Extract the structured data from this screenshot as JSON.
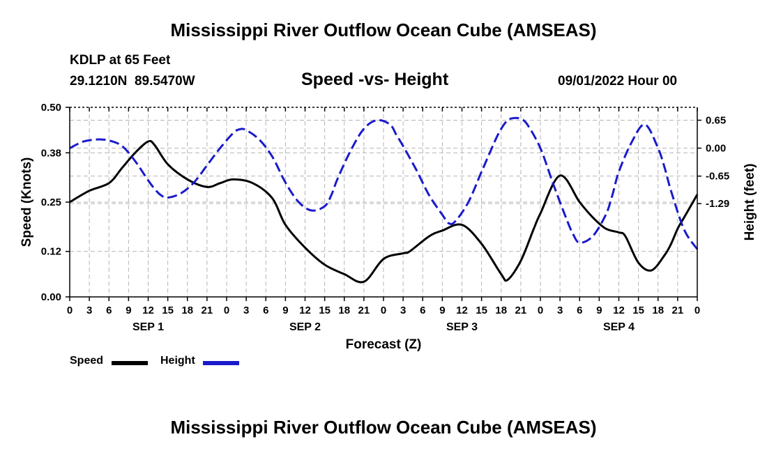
{
  "page": {
    "title_top": "Mississippi River Outflow Ocean Cube (AMSEAS)",
    "title_bottom": "Mississippi River Outflow Ocean Cube (AMSEAS)",
    "station": "KDLP at 65 Feet",
    "coords": "29.1210N  89.5470W",
    "date": "09/01/2022 Hour 00"
  },
  "legend": [
    {
      "label": "Speed",
      "color": "#000000"
    },
    {
      "label": "Height",
      "color": "#1a1acc"
    }
  ],
  "chart_data": {
    "type": "line",
    "title": "Speed -vs- Height",
    "xlabel": "Forecast (Z)",
    "ylabel": "Speed (Knots)",
    "y2label": "Height (feet)",
    "xlim": [
      0,
      96
    ],
    "ylim": [
      0,
      0.5
    ],
    "y2lim": [
      -3.46,
      0.95
    ],
    "x_ticks": [
      0,
      3,
      6,
      9,
      12,
      15,
      18,
      21,
      24,
      27,
      30,
      33,
      36,
      39,
      42,
      45,
      48,
      51,
      54,
      57,
      60,
      63,
      66,
      69,
      72,
      75,
      78,
      81,
      84,
      87,
      90,
      93,
      96
    ],
    "x_tick_labels": [
      "0",
      "3",
      "6",
      "9",
      "12",
      "15",
      "18",
      "21",
      "0",
      "3",
      "6",
      "9",
      "12",
      "15",
      "18",
      "21",
      "0",
      "3",
      "6",
      "9",
      "12",
      "15",
      "18",
      "21",
      "0",
      "3",
      "6",
      "9",
      "12",
      "15",
      "18",
      "21",
      "0"
    ],
    "y_ticks": [
      0.0,
      0.12,
      0.25,
      0.38,
      0.5
    ],
    "y_tick_labels": [
      "0.00",
      "0.12",
      "0.25",
      "0.38",
      "0.50"
    ],
    "y2_ticks": [
      0.65,
      0.0,
      -0.65,
      -1.29
    ],
    "y2_tick_labels": [
      "0.65",
      "0.00",
      "-0.65",
      "-1.29"
    ],
    "day_labels": [
      {
        "x": 12,
        "label": "SEP 1"
      },
      {
        "x": 36,
        "label": "SEP 2"
      },
      {
        "x": 60,
        "label": "SEP 3"
      },
      {
        "x": 84,
        "label": "SEP 4"
      }
    ],
    "grid": true,
    "series": [
      {
        "name": "Speed",
        "axis": "left",
        "color": "#000000",
        "dash": "",
        "x": [
          0,
          3,
          6,
          8,
          10,
          12,
          13,
          15,
          18,
          21,
          23,
          25,
          28,
          31,
          33,
          36,
          39,
          42,
          45,
          48,
          51,
          52,
          55,
          57,
          60,
          63,
          66,
          67,
          69,
          71,
          72,
          75,
          78,
          80,
          82,
          84,
          85,
          87,
          89,
          91,
          92,
          93,
          94,
          96
        ],
        "values": [
          0.25,
          0.28,
          0.3,
          0.34,
          0.38,
          0.41,
          0.4,
          0.35,
          0.31,
          0.29,
          0.3,
          0.31,
          0.3,
          0.26,
          0.19,
          0.13,
          0.085,
          0.06,
          0.04,
          0.1,
          0.115,
          0.12,
          0.16,
          0.175,
          0.19,
          0.14,
          0.06,
          0.045,
          0.095,
          0.18,
          0.22,
          0.32,
          0.25,
          0.21,
          0.18,
          0.17,
          0.16,
          0.09,
          0.07,
          0.11,
          0.14,
          0.18,
          0.21,
          0.27
        ]
      },
      {
        "name": "Height",
        "axis": "right",
        "color": "#1a1acc",
        "dash": "14 6",
        "x": [
          0,
          2,
          4,
          5,
          6,
          8,
          10,
          12,
          13,
          14,
          15,
          17,
          19,
          21,
          23,
          25,
          26,
          27,
          29,
          31,
          33,
          35,
          37,
          39,
          40,
          41,
          43,
          45,
          47,
          49,
          50,
          51,
          53,
          55,
          57,
          58,
          59,
          61,
          63,
          65,
          66,
          67,
          68,
          69,
          70,
          72,
          74,
          76,
          77,
          78,
          80,
          82,
          83,
          84,
          86,
          88,
          90,
          91,
          92,
          94,
          96
        ],
        "values": [
          0.0,
          0.15,
          0.2,
          0.2,
          0.18,
          0.05,
          -0.3,
          -0.75,
          -0.95,
          -1.1,
          -1.15,
          -1.05,
          -0.8,
          -0.4,
          0.0,
          0.35,
          0.44,
          0.42,
          0.2,
          -0.2,
          -0.8,
          -1.25,
          -1.45,
          -1.35,
          -1.1,
          -0.7,
          -0.05,
          0.45,
          0.65,
          0.55,
          0.3,
          0.05,
          -0.5,
          -1.1,
          -1.55,
          -1.75,
          -1.7,
          -1.25,
          -0.55,
          0.15,
          0.45,
          0.65,
          0.7,
          0.68,
          0.55,
          0.0,
          -0.85,
          -1.65,
          -2.0,
          -2.2,
          -2.05,
          -1.55,
          -1.1,
          -0.55,
          0.15,
          0.55,
          0.0,
          -0.45,
          -1.0,
          -1.9,
          -2.35
        ]
      }
    ]
  }
}
